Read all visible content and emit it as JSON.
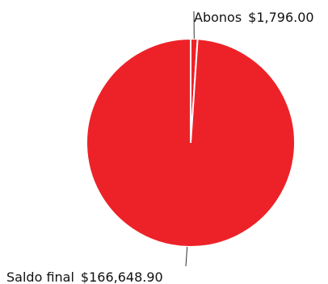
{
  "colors": {
    "slice": "#ED2228",
    "slice_stroke": "#ffffff",
    "leader": "#333333"
  },
  "chart_data": {
    "type": "pie",
    "title": "",
    "slices": [
      {
        "label": "Abonos",
        "value": 1796.0,
        "value_label": "$1,796.00"
      },
      {
        "label": "Saldo final",
        "value": 166648.9,
        "value_label": "$166,648.90"
      }
    ]
  }
}
